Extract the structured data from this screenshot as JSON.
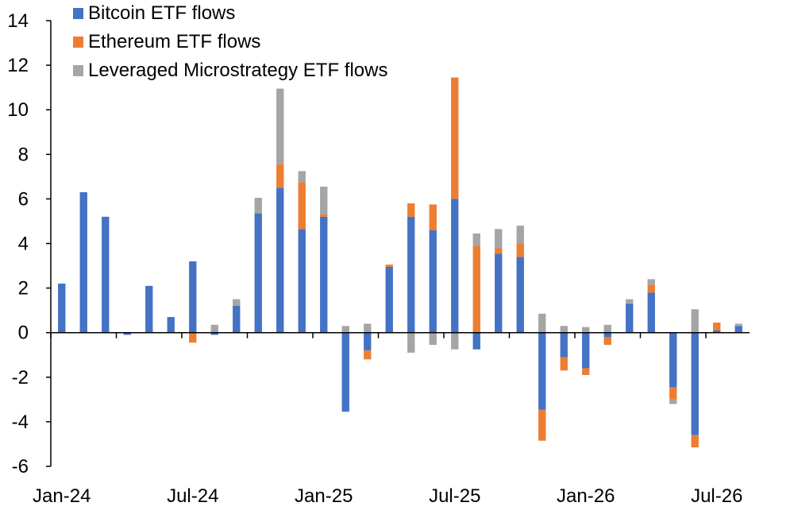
{
  "chart_data": {
    "type": "bar",
    "stacked": true,
    "categories": [
      "Jan-24",
      "Feb-24",
      "Mar-24",
      "Apr-24",
      "May-24",
      "Jun-24",
      "Jul-24",
      "Aug-24",
      "Sep-24",
      "Oct-24",
      "Nov-24",
      "Dec-24",
      "Jan-25",
      "Feb-25",
      "Mar-25",
      "Apr-25",
      "May-25",
      "Jun-25",
      "Jul-25",
      "Aug-25",
      "Sep-25",
      "Oct-25",
      "Nov-25",
      "Dec-25",
      "Jan-26",
      "Feb-26",
      "Mar-26",
      "Apr-26",
      "May-26",
      "Jun-26",
      "Jul-26",
      "Aug-26"
    ],
    "x_tick_labels": [
      "Jan-24",
      "Jul-24",
      "Jan-25",
      "Jul-25",
      "Jan-26",
      "Jul-26"
    ],
    "series": [
      {
        "name": "Bitcoin ETF flows",
        "color": "#4472C4",
        "values": [
          2.2,
          6.3,
          5.2,
          -0.1,
          2.1,
          0.7,
          3.2,
          -0.1,
          1.2,
          5.35,
          6.5,
          4.65,
          5.2,
          -3.55,
          -0.8,
          2.95,
          5.2,
          4.6,
          6.0,
          -0.75,
          3.55,
          3.4,
          -3.45,
          -1.1,
          -1.6,
          -0.2,
          1.3,
          1.8,
          -2.45,
          -4.6,
          0.1,
          0.3
        ]
      },
      {
        "name": "Ethereum ETF flows",
        "color": "#ED7D31",
        "values": [
          0,
          0,
          0,
          0,
          0,
          0,
          -0.45,
          0,
          0,
          0,
          1.05,
          2.1,
          0.1,
          0,
          -0.4,
          0.1,
          0.6,
          1.15,
          5.45,
          3.9,
          0.25,
          0.6,
          -1.4,
          -0.6,
          -0.3,
          -0.35,
          0,
          0.35,
          -0.55,
          -0.55,
          0.35,
          0
        ]
      },
      {
        "name": "Leveraged Microstrategy ETF flows",
        "color": "#A5A5A5",
        "values": [
          0,
          0,
          0,
          0,
          0,
          0,
          0,
          0.35,
          0.3,
          0.7,
          3.4,
          0.5,
          1.25,
          0.3,
          0.4,
          0,
          -0.9,
          -0.55,
          -0.75,
          0.55,
          0.85,
          0.8,
          0.85,
          0.3,
          0.25,
          0.35,
          0.2,
          0.25,
          -0.2,
          1.05,
          0,
          0.1
        ]
      }
    ],
    "ylim": [
      -6,
      14
    ],
    "y_ticks": [
      -6,
      -4,
      -2,
      0,
      2,
      4,
      6,
      8,
      10,
      12,
      14
    ],
    "title": "",
    "xlabel": "",
    "ylabel": "",
    "grid": false,
    "legend_position": "top-left"
  }
}
